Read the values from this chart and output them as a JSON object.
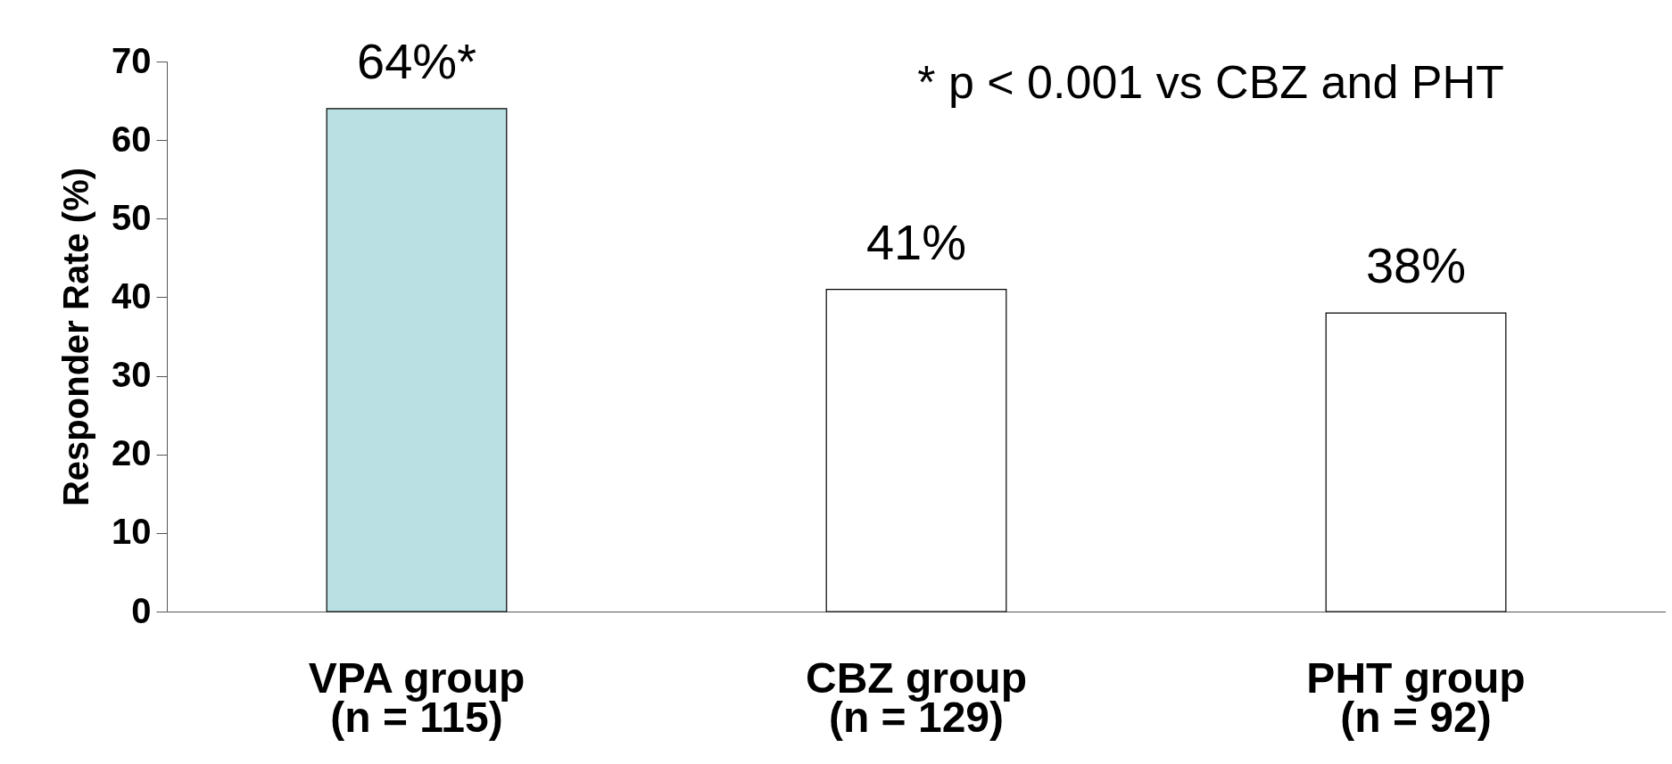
{
  "chart_data": {
    "type": "bar",
    "ylabel": "Responder Rate (%)",
    "categories": [
      "VPA group\n(n = 115)",
      "CBZ group\n(n = 129)",
      "PHT group\n(n = 92)"
    ],
    "values": [
      64,
      41,
      38
    ],
    "colors": [
      "#bae0e3",
      "#ffffff",
      "#ffffff"
    ],
    "value_labels": [
      "64%*",
      "41%",
      "38%"
    ],
    "ylim": [
      0,
      70
    ],
    "yticks": [
      0,
      10,
      20,
      30,
      40,
      50,
      60,
      70
    ],
    "annotations": [
      "* p < 0.001 vs CBZ and PHT"
    ],
    "grid": false
  }
}
